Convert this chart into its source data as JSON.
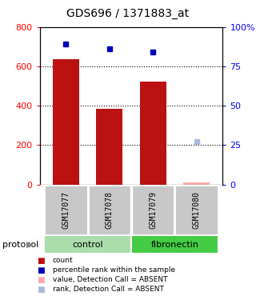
{
  "title": "GDS696 / 1371883_at",
  "samples": [
    "GSM17077",
    "GSM17078",
    "GSM17079",
    "GSM17080"
  ],
  "bar_values": [
    635,
    383,
    523,
    10
  ],
  "rank_values": [
    89,
    86,
    84,
    27
  ],
  "absent_flags": [
    false,
    false,
    false,
    true
  ],
  "bar_color": "#BB1111",
  "bar_color_absent": "#FFAAAA",
  "rank_color": "#0000BB",
  "rank_color_absent": "#AABBDD",
  "ylim_left": [
    0,
    800
  ],
  "ylim_right": [
    0,
    100
  ],
  "yticks_left": [
    0,
    200,
    400,
    600,
    800
  ],
  "yticks_right": [
    0,
    25,
    50,
    75,
    100
  ],
  "ytick_labels_right": [
    "0",
    "25",
    "50",
    "75",
    "100%"
  ],
  "label_area_bg": "#C8C8C8",
  "control_color": "#AADDAA",
  "fibronectin_color": "#44CC44",
  "protocol_label": "protocol"
}
